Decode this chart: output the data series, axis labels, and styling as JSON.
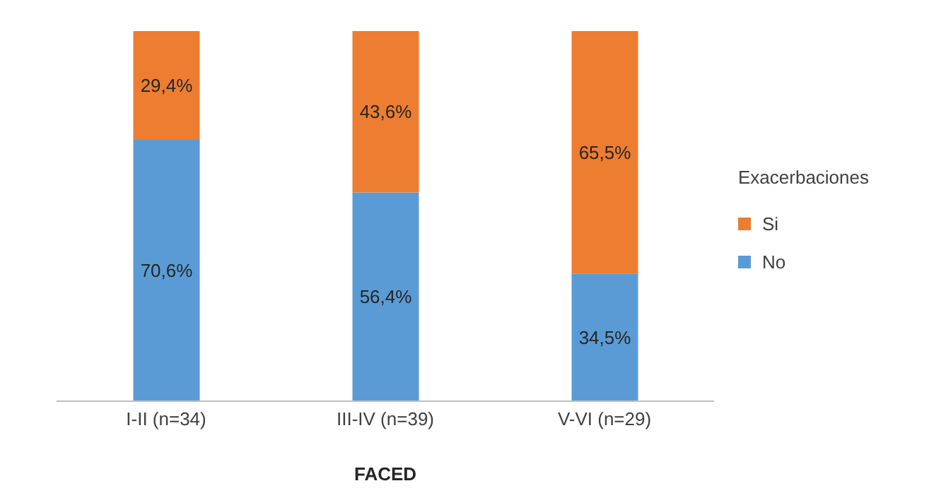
{
  "chart_data": {
    "type": "bar",
    "stacked": true,
    "categories": [
      "I-II (n=34)",
      "III-IV (n=39)",
      "V-VI (n=29)"
    ],
    "xlabel": "FACED",
    "legend_title": "Exacerbaciones",
    "legend": "right",
    "series": [
      {
        "name": "No",
        "color": "#5b9bd5",
        "values": [
          70.6,
          56.4,
          34.5
        ],
        "value_labels": [
          "70,6%",
          "56,4%",
          "34,5%"
        ]
      },
      {
        "name": "Si",
        "color": "#ed7d31",
        "values": [
          29.4,
          43.6,
          65.5
        ],
        "value_labels": [
          "29,4%",
          "43,6%",
          "65,5%"
        ]
      }
    ]
  }
}
